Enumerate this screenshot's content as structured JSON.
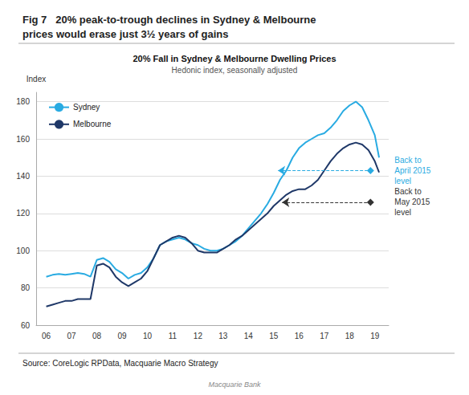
{
  "chart_data": {
    "type": "line",
    "figure_title": [
      "Fig 7   20% peak-to-trough declines in Sydney & Melbourne",
      "prices would erase just 3½ years of gains"
    ],
    "title": "20% Fall in Sydney & Melbourne Dwelling Prices",
    "subtitle": "Hedonic index, seasonally adjusted",
    "ylabel": "Index",
    "source": "Source: CoreLogic RPData, Macquarie Macro Strategy",
    "footer": "Macquarie Bank",
    "x": [
      2006,
      2006.25,
      2006.5,
      2006.75,
      2007,
      2007.25,
      2007.5,
      2007.75,
      2008,
      2008.25,
      2008.5,
      2008.75,
      2009,
      2009.25,
      2009.5,
      2009.75,
      2010,
      2010.25,
      2010.5,
      2010.75,
      2011,
      2011.25,
      2011.5,
      2011.75,
      2012,
      2012.25,
      2012.5,
      2012.75,
      2013,
      2013.25,
      2013.5,
      2013.75,
      2014,
      2014.25,
      2014.5,
      2014.75,
      2015,
      2015.25,
      2015.5,
      2015.75,
      2016,
      2016.25,
      2016.5,
      2016.75,
      2017,
      2017.25,
      2017.5,
      2017.75,
      2018,
      2018.25,
      2018.5,
      2018.75,
      2019,
      2019.17
    ],
    "xlim": [
      2005.6,
      2019.55
    ],
    "xticks": [
      {
        "value": 2006,
        "label": "06"
      },
      {
        "value": 2007,
        "label": "07"
      },
      {
        "value": 2008,
        "label": "08"
      },
      {
        "value": 2009,
        "label": "09"
      },
      {
        "value": 2010,
        "label": "10"
      },
      {
        "value": 2011,
        "label": "11"
      },
      {
        "value": 2012,
        "label": "12"
      },
      {
        "value": 2013,
        "label": "13"
      },
      {
        "value": 2014,
        "label": "14"
      },
      {
        "value": 2015,
        "label": "15"
      },
      {
        "value": 2016,
        "label": "16"
      },
      {
        "value": 2017,
        "label": "17"
      },
      {
        "value": 2018,
        "label": "18"
      },
      {
        "value": 2019,
        "label": "19"
      }
    ],
    "ylim": [
      60,
      185
    ],
    "yticks": [
      60,
      80,
      100,
      120,
      140,
      160,
      180
    ],
    "grid": true,
    "legend": "upper left",
    "series": [
      {
        "name": "Sydney",
        "color": "#29ABE2",
        "values": [
          86,
          87,
          87.5,
          87,
          87.5,
          88,
          87.5,
          86,
          95,
          96,
          94,
          90,
          88,
          85,
          87,
          88,
          91,
          96,
          103,
          105,
          106,
          107,
          106,
          104,
          103,
          101,
          100,
          100,
          101,
          103,
          105,
          108,
          112,
          116,
          120,
          125,
          131,
          138,
          143,
          150,
          155,
          158,
          160,
          162,
          163,
          166,
          170,
          175,
          178,
          180,
          177,
          170,
          162,
          150
        ]
      },
      {
        "name": "Melbourne",
        "color": "#1F3868",
        "values": [
          70,
          71,
          72,
          73,
          73,
          74,
          74,
          74,
          92,
          93,
          91,
          86,
          83,
          81,
          83,
          85,
          89,
          96,
          103,
          105,
          107,
          108,
          107,
          104,
          100,
          99,
          99,
          99,
          101,
          103,
          106,
          108,
          111,
          114,
          117,
          120,
          124,
          127,
          130,
          132,
          133,
          133,
          135,
          138,
          143,
          148,
          152,
          155,
          157,
          158,
          157,
          154,
          148,
          142
        ]
      }
    ],
    "annotations": [
      {
        "text": "Back to\nApril 2015\nlevel",
        "x": [
          2015.17,
          2018.83
        ],
        "y": [
          143,
          143
        ],
        "color": "#29ABE2",
        "marker": "diamond",
        "line_style": "dashed"
      },
      {
        "text": "Back to\nMay 2015\nlevel",
        "x": [
          2015.33,
          2018.83
        ],
        "y": [
          126,
          126
        ],
        "color": "#333333",
        "marker": "diamond",
        "line_style": "dashed"
      }
    ]
  }
}
